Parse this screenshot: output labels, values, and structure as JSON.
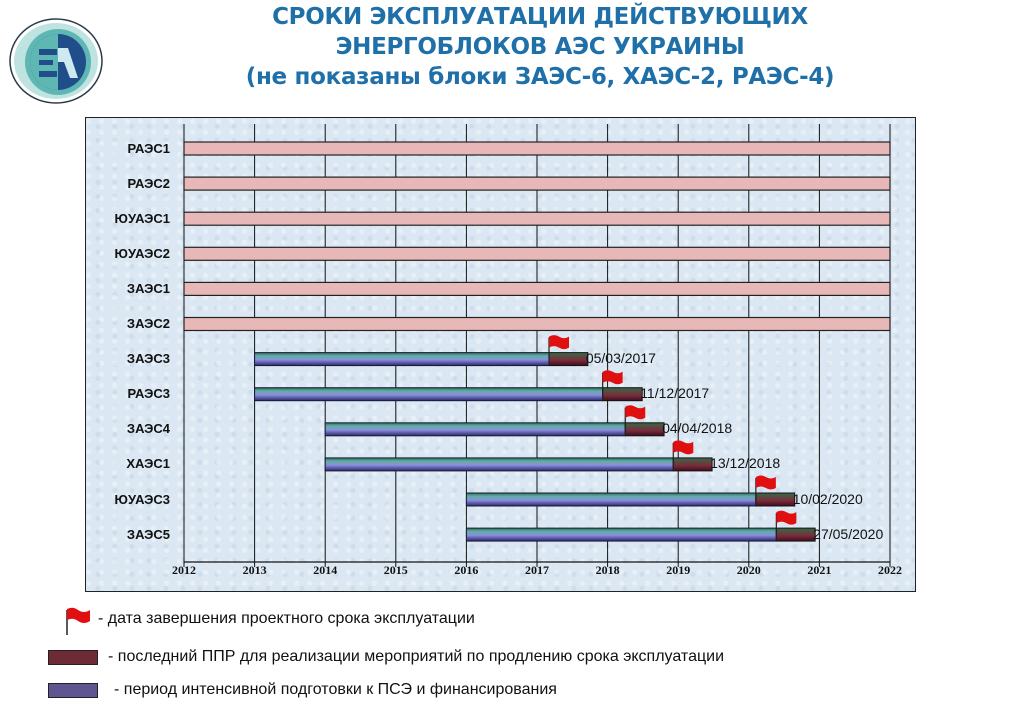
{
  "title": {
    "line1": "СРОКИ ЭКСПЛУАТАЦИИ ДЕЙСТВУЮЩИХ",
    "line2": "ЭНЕРГОБЛОКОВ АЭС УКРАИНЫ",
    "line3": "(не показаны блоки ЗАЭС-6, ХАЭС-2, РАЭС-4)"
  },
  "logo": {
    "icon": "ea-logo-icon",
    "text": "EA"
  },
  "colors": {
    "title": "#1f6fa8",
    "extended_bar": "#e8b8b8",
    "prep_bar": "#7b7fd0",
    "prep_bar_top": "#3f8a7a",
    "ppr_bar": "#6e2a35",
    "flag": "#e01010",
    "plot_bg": "#dbe8f3"
  },
  "chart_data": {
    "type": "bar",
    "orientation": "horizontal-gantt",
    "title": "СРОКИ ЭКСПЛУАТАЦИИ ДЕЙСТВУЮЩИХ ЭНЕРГОБЛОКОВ АЭС УКРАИНЫ (не показаны блоки ЗАЭС-6, ХАЭС-2, РАЭС-4)",
    "xlabel": "",
    "ylabel": "",
    "xlim": [
      2012,
      2022
    ],
    "x_ticks": [
      "2012",
      "2013",
      "2014",
      "2015",
      "2016",
      "2017",
      "2018",
      "2019",
      "2020",
      "2021",
      "2022"
    ],
    "grid": "vertical lines at each year",
    "categories": [
      "РАЭС1",
      "РАЭС2",
      "ЮУАЭС1",
      "ЮУАЭС2",
      "ЗАЭС1",
      "ЗАЭС2",
      "ЗАЭС3",
      "РАЭС3",
      "ЗАЭС4",
      "ХАЭС1",
      "ЮУАЭС3",
      "ЗАЭС5"
    ],
    "rows": [
      {
        "unit": "РАЭС1",
        "type": "extended",
        "start": 2012,
        "end": 2022
      },
      {
        "unit": "РАЭС2",
        "type": "extended",
        "start": 2012,
        "end": 2022
      },
      {
        "unit": "ЮУАЭС1",
        "type": "extended",
        "start": 2012,
        "end": 2022
      },
      {
        "unit": "ЮУАЭС2",
        "type": "extended",
        "start": 2012,
        "end": 2022
      },
      {
        "unit": "ЗАЭС1",
        "type": "extended",
        "start": 2012,
        "end": 2022
      },
      {
        "unit": "ЗАЭС2",
        "type": "extended",
        "start": 2012,
        "end": 2022
      },
      {
        "unit": "ЗАЭС3",
        "type": "prep",
        "start": 2013,
        "flag": 2017.17,
        "ppr_end": 2017.72,
        "date_label": "05/03/2017"
      },
      {
        "unit": "РАЭС3",
        "type": "prep",
        "start": 2013,
        "flag": 2017.93,
        "ppr_end": 2018.49,
        "date_label": "11/12/2017"
      },
      {
        "unit": "ЗАЭС4",
        "type": "prep",
        "start": 2014,
        "flag": 2018.25,
        "ppr_end": 2018.8,
        "date_label": "04/04/2018"
      },
      {
        "unit": "ХАЭС1",
        "type": "prep",
        "start": 2014,
        "flag": 2018.93,
        "ppr_end": 2019.48,
        "date_label": "13/12/2018"
      },
      {
        "unit": "ЮУАЭС3",
        "type": "prep",
        "start": 2016,
        "flag": 2020.1,
        "ppr_end": 2020.65,
        "date_label": "10/02/2020"
      },
      {
        "unit": "ЗАЭС5",
        "type": "prep",
        "start": 2016,
        "flag": 2020.39,
        "ppr_end": 2020.94,
        "date_label": "27/05/2020"
      }
    ],
    "legend": [
      {
        "symbol": "red flag",
        "label": "- дата завершения проектного срока эксплуатации"
      },
      {
        "symbol": "dark red bar",
        "label": "-  последний ППР  для реализации мероприятий по продлению срока эксплуатации"
      },
      {
        "symbol": "blue-violet bar",
        "label": "- период интенсивной подготовки к ПСЭ и финансирования"
      }
    ],
    "legend_position": "bottom"
  },
  "legend": {
    "flag_label": "- дата завершения проектного срока эксплуатации",
    "ppr_label": "-  последний ППР  для реализации мероприятий по продлению срока эксплуатации",
    "prep_label": "- период интенсивной подготовки к ПСЭ и финансирования"
  }
}
